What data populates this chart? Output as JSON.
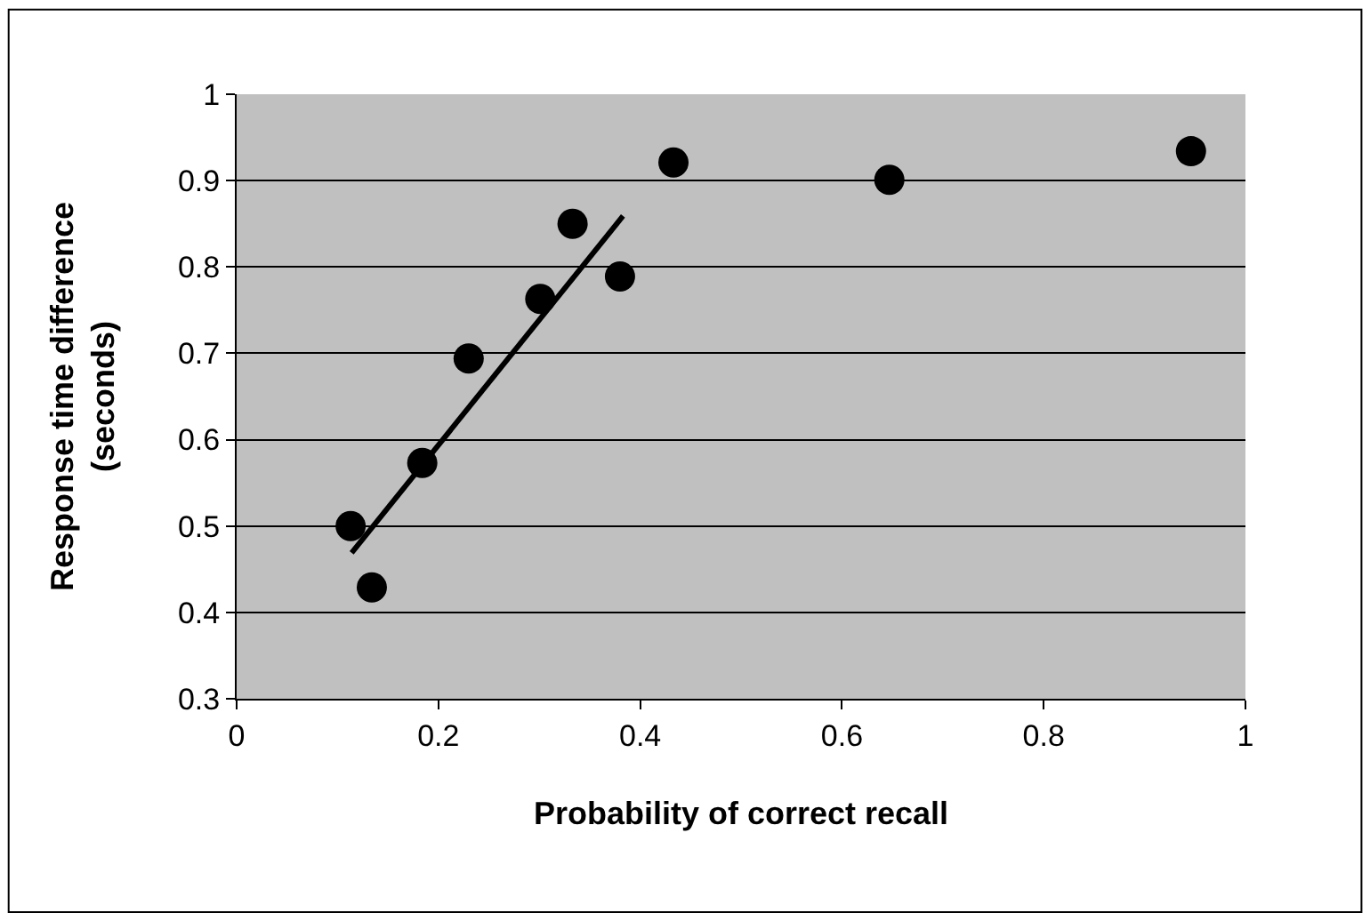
{
  "chart_data": {
    "type": "scatter",
    "xlabel": "Probability of correct recall",
    "ylabel": "Response time difference\n(seconds)",
    "xlim": [
      0,
      1
    ],
    "xticks": [
      0,
      0.2,
      0.4,
      0.6,
      0.8,
      1
    ],
    "ylim": [
      0.3,
      1
    ],
    "yticks": [
      0.3,
      0.4,
      0.5,
      0.6,
      0.7,
      0.8,
      0.9,
      1
    ],
    "grid": "y",
    "marker": "circle",
    "series": [
      {
        "color": "#000000",
        "x": [
          0.113,
          0.134,
          0.184,
          0.23,
          0.301,
          0.333,
          0.38,
          0.433,
          0.647,
          0.946
        ],
        "values": [
          0.5,
          0.429,
          0.573,
          0.694,
          0.763,
          0.85,
          0.789,
          0.921,
          0.901,
          0.934
        ]
      },
      {
        "type": "line",
        "color": "#000000",
        "marker": "none",
        "line_style": "solid",
        "x": [
          0.114,
          0.383
        ],
        "values": [
          0.469,
          0.859
        ]
      }
    ]
  }
}
